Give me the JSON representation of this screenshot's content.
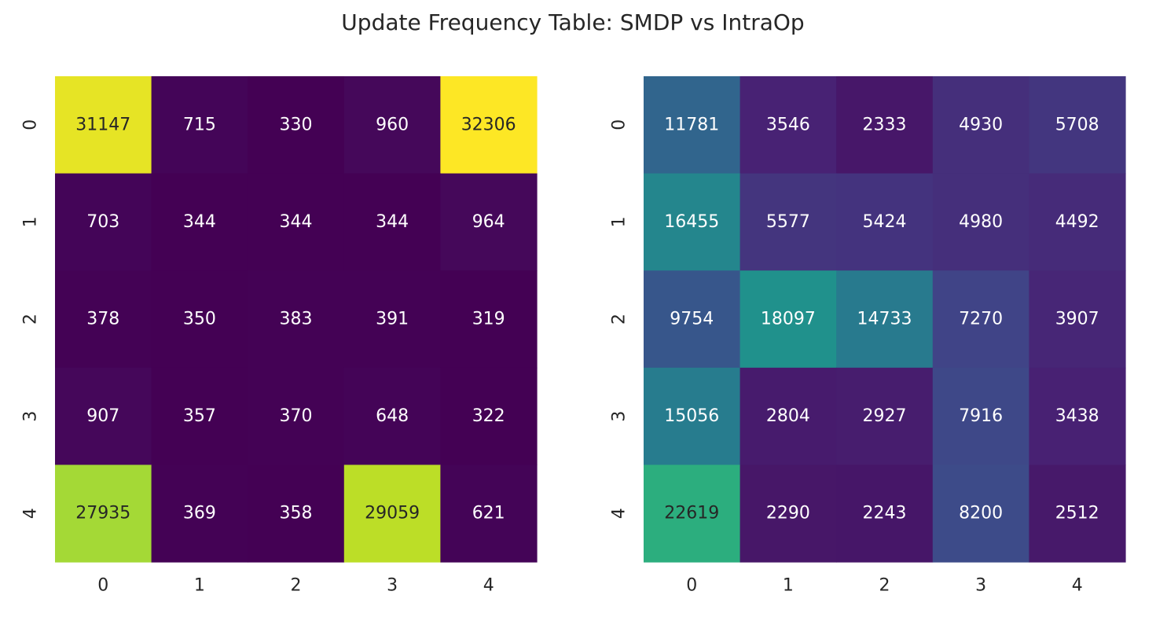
{
  "title": "Update Frequency Table: SMDP vs IntraOp",
  "chart_data": [
    {
      "type": "heatmap",
      "colormap": "viridis",
      "x_categories": [
        "0",
        "1",
        "2",
        "3",
        "4"
      ],
      "y_categories": [
        "0",
        "1",
        "2",
        "3",
        "4"
      ],
      "vmin": 319,
      "vmax": 32306,
      "values": [
        [
          31147,
          715,
          330,
          960,
          32306
        ],
        [
          703,
          344,
          344,
          344,
          964
        ],
        [
          378,
          350,
          383,
          391,
          319
        ],
        [
          907,
          357,
          370,
          648,
          322
        ],
        [
          27935,
          369,
          358,
          29059,
          621
        ]
      ],
      "annotated": true,
      "colorbar": false
    },
    {
      "type": "heatmap",
      "colormap": "viridis",
      "x_categories": [
        "0",
        "1",
        "2",
        "3",
        "4"
      ],
      "y_categories": [
        "0",
        "1",
        "2",
        "3",
        "4"
      ],
      "vmin": 0,
      "vmax": 36000,
      "values": [
        [
          11781,
          3546,
          2333,
          4930,
          5708
        ],
        [
          16455,
          5577,
          5424,
          4980,
          4492
        ],
        [
          9754,
          18097,
          14733,
          7270,
          3907
        ],
        [
          15056,
          2804,
          2927,
          7916,
          3438
        ],
        [
          22619,
          2290,
          2243,
          8200,
          2512
        ]
      ],
      "annotated": true,
      "colorbar": false
    }
  ]
}
